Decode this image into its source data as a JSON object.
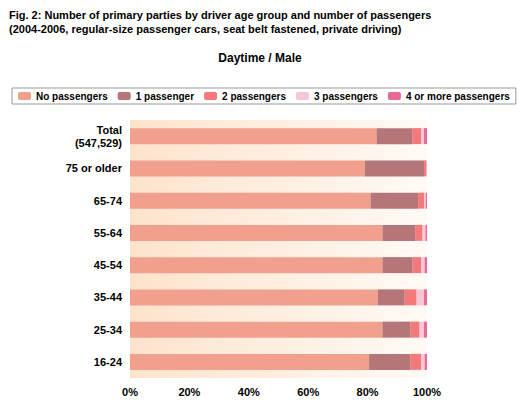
{
  "chart_data": {
    "type": "bar",
    "title": "Fig. 2: Number of primary parties by driver age group and number of passengers",
    "subtitle": "(2004-2006, regular-size passenger cars, seat belt fastened, private driving)",
    "annotations": [
      "Daytime / Male"
    ],
    "orientation": "horizontal",
    "stacked": true,
    "grid": false,
    "legend": "top",
    "categories": [
      "Total\n(547,529)",
      "75 or older",
      "65-74",
      "55-64",
      "45-54",
      "35-44",
      "25-34",
      "16-24"
    ],
    "series": [
      {
        "name": "No passengers",
        "color": "#f1a08e",
        "values": [
          83,
          79,
          81,
          85,
          85,
          83.5,
          85,
          80.5
        ]
      },
      {
        "name": "1 passenger",
        "color": "#b5767a",
        "values": [
          12,
          20,
          16,
          11,
          10,
          9,
          9.5,
          14
        ]
      },
      {
        "name": "2 passengers",
        "color": "#f27a7a",
        "values": [
          3,
          0.7,
          2,
          2.5,
          3,
          4,
          3,
          3.5
        ]
      },
      {
        "name": "3 passengers",
        "color": "#f9c6d6",
        "values": [
          1,
          0.2,
          0.6,
          1,
          1.2,
          2.5,
          1.5,
          1.2
        ]
      },
      {
        "name": "4 or more passengers",
        "color": "#e86a94",
        "values": [
          1,
          0.1,
          0.4,
          0.5,
          0.8,
          1,
          1,
          0.8
        ]
      }
    ],
    "xlim": [
      0,
      100
    ],
    "xticks": [
      {
        "value": 0,
        "label": "0%"
      },
      {
        "value": 20,
        "label": "20%"
      },
      {
        "value": 40,
        "label": "40%"
      },
      {
        "value": 60,
        "label": "60%"
      },
      {
        "value": 80,
        "label": "80%"
      },
      {
        "value": 100,
        "label": "100%"
      }
    ]
  }
}
